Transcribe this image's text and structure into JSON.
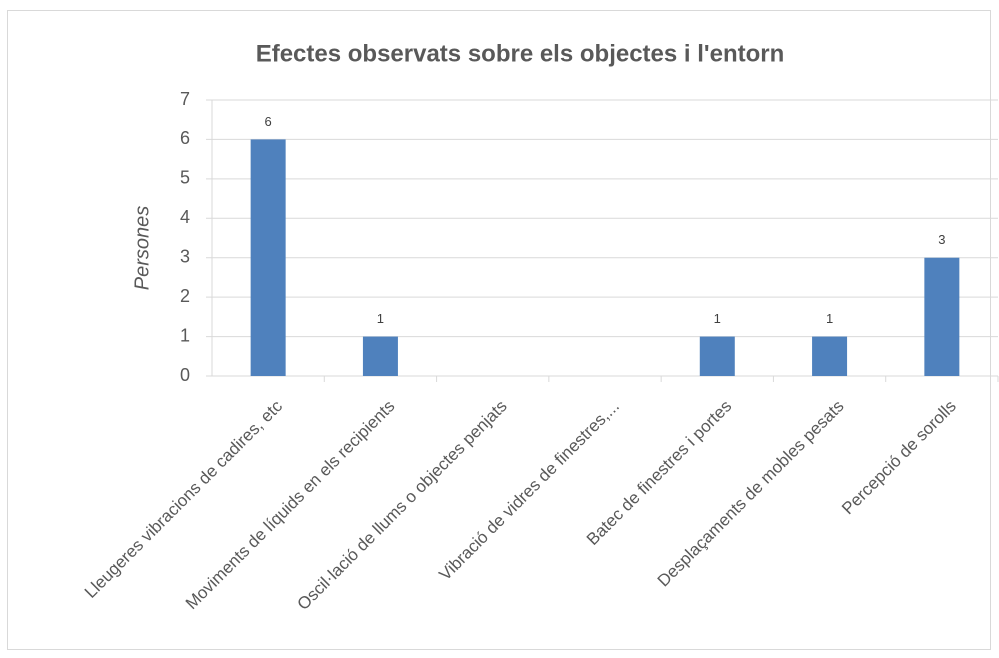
{
  "chart_data": {
    "type": "bar",
    "title": "Efectes observats sobre els objectes i l'entorn",
    "y_label": "Persones",
    "categories": [
      "Lleugeres vibracions de cadires, etc",
      "Moviments de líquids en els recipients",
      "Oscil·lació de llums o objectes penjats",
      "Vibració de vidres de finestres,...",
      "Batec de finestres i portes",
      "Desplaçaments de mobles pesats",
      "Percepció de sorolls"
    ],
    "values": [
      6,
      1,
      null,
      null,
      1,
      1,
      3
    ],
    "color": "#4f81bd",
    "ylim": [
      0,
      7
    ],
    "yticks": [
      0,
      1,
      2,
      3,
      4,
      5,
      6,
      7
    ],
    "grid": true
  }
}
